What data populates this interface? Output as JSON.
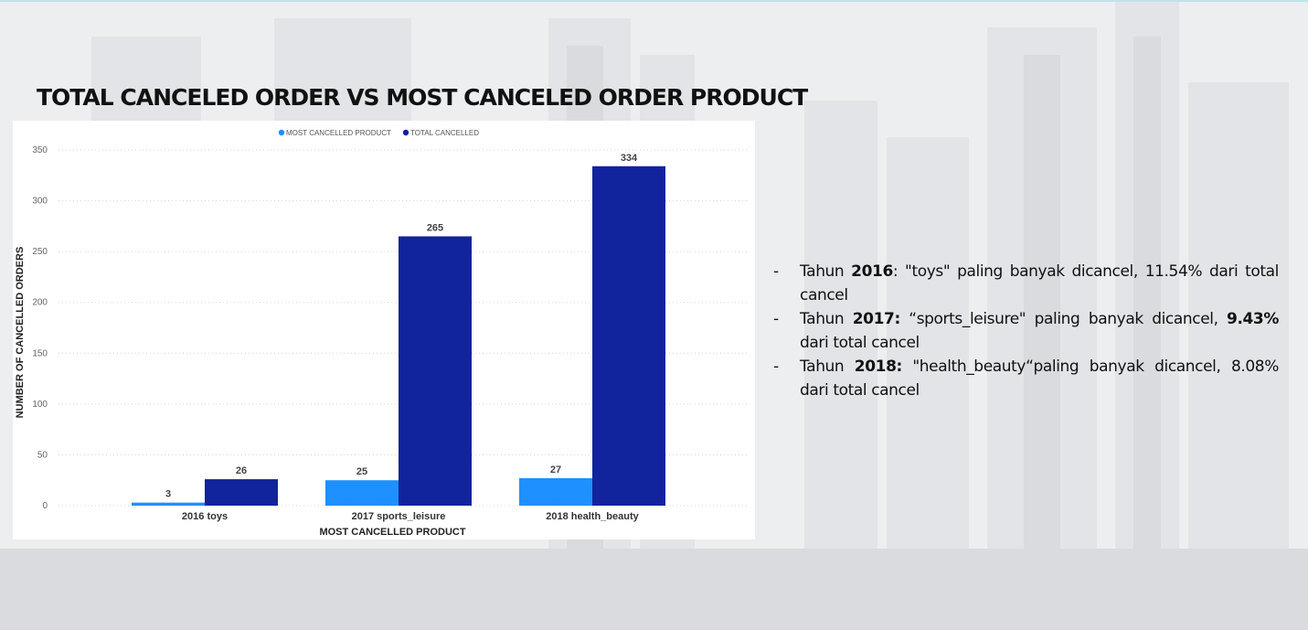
{
  "slide": {
    "title": "TOTAL CANCELED ORDER VS MOST CANCELED ORDER PRODUCT"
  },
  "chart_data": {
    "type": "bar",
    "categories": [
      "2016 toys",
      "2017 sports_leisure",
      "2018 health_beauty"
    ],
    "series": [
      {
        "name": "MOST CANCELLED PRODUCT",
        "values": [
          3,
          25,
          27
        ],
        "color": "#1e90ff"
      },
      {
        "name": "TOTAL CANCELLED",
        "values": [
          26,
          265,
          334
        ],
        "color": "#12239e"
      }
    ],
    "xlabel": "MOST CANCELLED PRODUCT",
    "ylabel": "NUMBER OF CANCELLED ORDERS",
    "ylim": [
      0,
      350
    ],
    "yticks": [
      0,
      50,
      100,
      150,
      200,
      250,
      300,
      350
    ],
    "grid": true,
    "legend_position": "top-center"
  },
  "notes": [
    {
      "dash": "-",
      "prefix": "Tahun ",
      "year": "2016",
      "middle": ": \"toys\" paling banyak dicancel, ",
      "pct": "11.54%",
      "suffix": " dari total cancel",
      "pct_bold": false
    },
    {
      "dash": "-",
      "prefix": "Tahun ",
      "year": "2017:",
      "middle": " “sports_leisure\" paling banyak dicancel, ",
      "pct": "9.43%",
      "suffix": " dari total cancel",
      "pct_bold": true
    },
    {
      "dash": "-",
      "prefix": "Tahun ",
      "year": "2018:",
      "middle": " \"health_beauty“paling banyak dicancel, ",
      "pct": "8.08%",
      "suffix": " dari total cancel",
      "pct_bold": false
    }
  ]
}
